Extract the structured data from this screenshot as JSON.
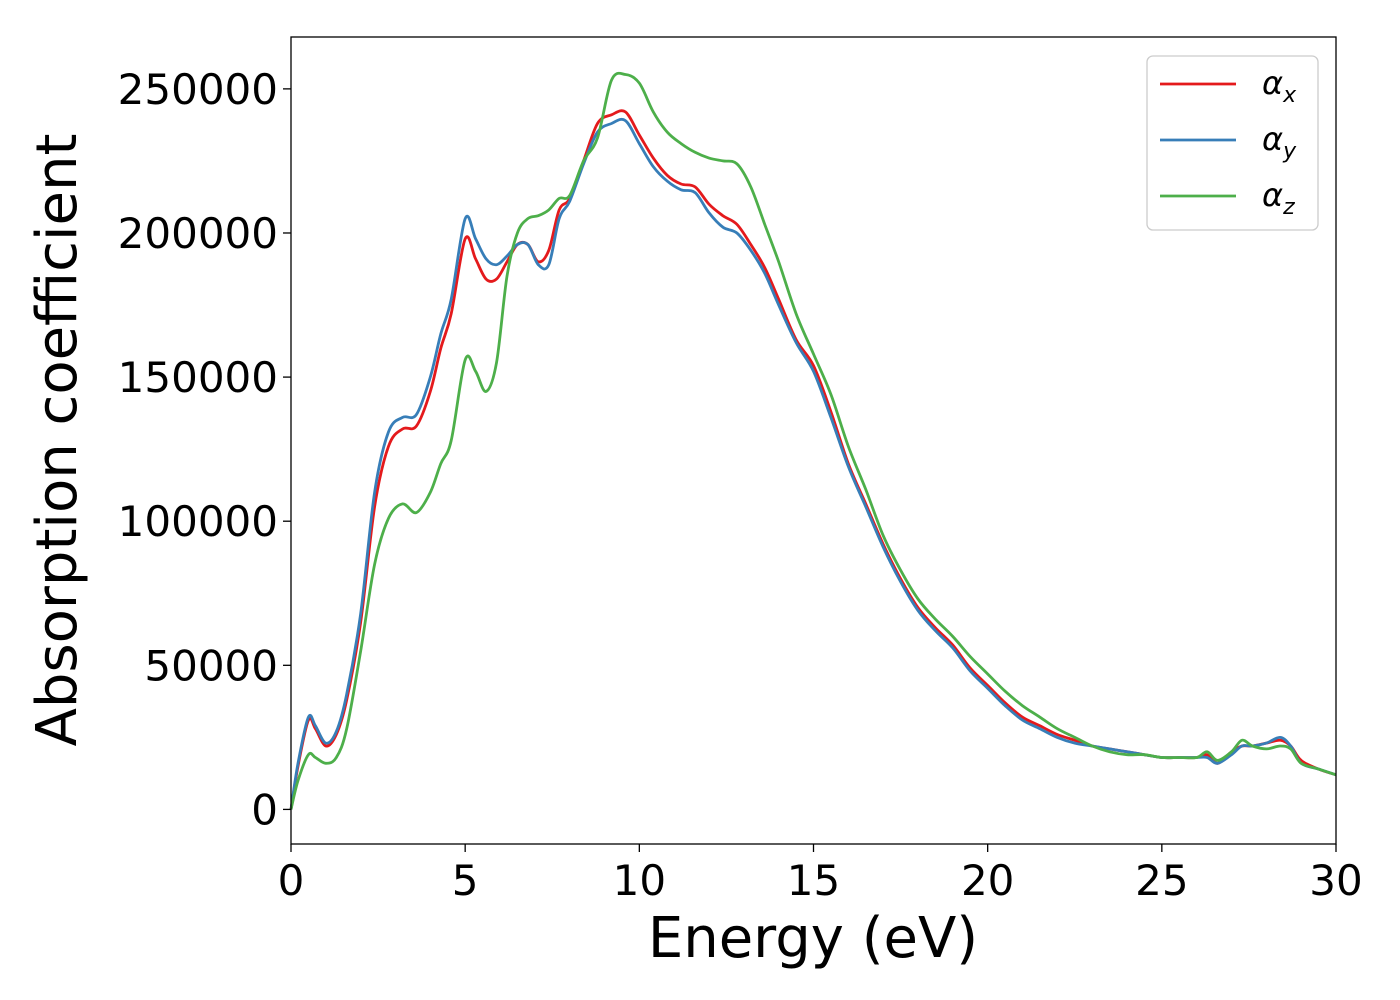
{
  "chart_data": {
    "type": "line",
    "title": "",
    "xlabel": "Energy (eV)",
    "ylabel": "Absorption coefficient",
    "xlim": [
      0,
      30
    ],
    "ylim": [
      -12000,
      268000
    ],
    "xticks": [
      0,
      5,
      10,
      15,
      20,
      25,
      30
    ],
    "yticks": [
      0,
      50000,
      100000,
      150000,
      200000,
      250000
    ],
    "grid": false,
    "legend_position": "top-right",
    "series": [
      {
        "name": "αx",
        "name_base": "α",
        "name_sub": "x",
        "color": "#e41a1c",
        "x": [
          0,
          0.2,
          0.5,
          0.7,
          1.0,
          1.3,
          1.6,
          2.0,
          2.4,
          2.8,
          3.2,
          3.6,
          4.0,
          4.3,
          4.6,
          5.0,
          5.3,
          5.6,
          5.9,
          6.2,
          6.5,
          6.8,
          7.1,
          7.4,
          7.7,
          8.0,
          8.4,
          8.8,
          9.2,
          9.6,
          10.0,
          10.4,
          10.8,
          11.2,
          11.6,
          12.0,
          12.4,
          12.8,
          13.2,
          13.6,
          14.0,
          14.5,
          15.0,
          15.5,
          16.0,
          16.5,
          17.0,
          17.5,
          18.0,
          18.5,
          19.0,
          19.5,
          20.0,
          20.5,
          21.0,
          21.5,
          22.0,
          22.5,
          23.0,
          23.5,
          24.0,
          24.5,
          25.0,
          25.5,
          26.0,
          26.3,
          26.6,
          27.0,
          27.3,
          27.6,
          28.0,
          28.4,
          28.7,
          29.0,
          29.5,
          30.0
        ],
        "values": [
          0,
          15000,
          31000,
          28000,
          22000,
          26000,
          38000,
          65000,
          105000,
          126000,
          132000,
          133000,
          145000,
          160000,
          172000,
          198000,
          191000,
          184000,
          184000,
          190000,
          196000,
          196000,
          190000,
          194000,
          208000,
          212000,
          225000,
          238000,
          241000,
          242000,
          234000,
          226000,
          220000,
          217000,
          216000,
          210000,
          206000,
          203000,
          196000,
          188000,
          177000,
          163000,
          154000,
          138000,
          120000,
          106000,
          92000,
          80000,
          70000,
          63000,
          57000,
          49000,
          43000,
          37000,
          32000,
          29000,
          26000,
          24000,
          22000,
          21000,
          20000,
          19000,
          18000,
          18000,
          18000,
          19000,
          16000,
          20000,
          22000,
          22000,
          23000,
          24000,
          22000,
          17000,
          14000,
          12000
        ]
      },
      {
        "name": "αy",
        "name_base": "α",
        "name_sub": "y",
        "color": "#377eb8",
        "x": [
          0,
          0.2,
          0.5,
          0.7,
          1.0,
          1.3,
          1.6,
          2.0,
          2.4,
          2.8,
          3.2,
          3.6,
          4.0,
          4.3,
          4.6,
          5.0,
          5.3,
          5.6,
          5.9,
          6.2,
          6.5,
          6.8,
          7.1,
          7.4,
          7.7,
          8.0,
          8.4,
          8.8,
          9.2,
          9.6,
          10.0,
          10.4,
          10.8,
          11.2,
          11.6,
          12.0,
          12.4,
          12.8,
          13.2,
          13.6,
          14.0,
          14.5,
          15.0,
          15.5,
          16.0,
          16.5,
          17.0,
          17.5,
          18.0,
          18.5,
          19.0,
          19.5,
          20.0,
          20.5,
          21.0,
          21.5,
          22.0,
          22.5,
          23.0,
          23.5,
          24.0,
          24.5,
          25.0,
          25.5,
          26.0,
          26.3,
          26.6,
          27.0,
          27.3,
          27.6,
          28.0,
          28.4,
          28.7,
          29.0,
          29.5,
          30.0
        ],
        "values": [
          0,
          16000,
          32000,
          29000,
          23000,
          27000,
          40000,
          68000,
          110000,
          131000,
          136000,
          137000,
          150000,
          165000,
          177000,
          205000,
          198000,
          191000,
          189000,
          192000,
          196000,
          196000,
          189000,
          189000,
          205000,
          211000,
          224000,
          235000,
          238000,
          239000,
          231000,
          223000,
          218000,
          215000,
          214000,
          207000,
          202000,
          200000,
          194000,
          186000,
          175000,
          162000,
          152000,
          136000,
          119000,
          105000,
          91000,
          79000,
          69000,
          62000,
          56000,
          48000,
          42000,
          36000,
          31000,
          28000,
          25000,
          23000,
          22000,
          21000,
          20000,
          19000,
          18000,
          18000,
          18000,
          18000,
          16000,
          19000,
          22000,
          22000,
          23000,
          25000,
          22000,
          16000,
          14000,
          12000
        ]
      },
      {
        "name": "αz",
        "name_base": "α",
        "name_sub": "z",
        "color": "#4daf4a",
        "x": [
          0,
          0.2,
          0.5,
          0.7,
          1.0,
          1.3,
          1.6,
          2.0,
          2.4,
          2.8,
          3.2,
          3.6,
          4.0,
          4.3,
          4.6,
          5.0,
          5.3,
          5.6,
          5.9,
          6.2,
          6.5,
          6.8,
          7.1,
          7.4,
          7.7,
          8.0,
          8.4,
          8.8,
          9.2,
          9.6,
          10.0,
          10.4,
          10.8,
          11.2,
          11.6,
          12.0,
          12.4,
          12.8,
          13.2,
          13.6,
          14.0,
          14.5,
          15.0,
          15.5,
          16.0,
          16.5,
          17.0,
          17.5,
          18.0,
          18.5,
          19.0,
          19.5,
          20.0,
          20.5,
          21.0,
          21.5,
          22.0,
          22.5,
          23.0,
          23.5,
          24.0,
          24.5,
          25.0,
          25.5,
          26.0,
          26.3,
          26.6,
          27.0,
          27.3,
          27.6,
          28.0,
          28.4,
          28.7,
          29.0,
          29.5,
          30.0
        ],
        "values": [
          0,
          10000,
          19000,
          18000,
          16000,
          18000,
          28000,
          55000,
          85000,
          101000,
          106000,
          103000,
          110000,
          120000,
          128000,
          156000,
          152000,
          145000,
          155000,
          185000,
          200000,
          205000,
          206000,
          208000,
          212000,
          213000,
          225000,
          233000,
          253000,
          255000,
          252000,
          242000,
          235000,
          231000,
          228000,
          226000,
          225000,
          224000,
          216000,
          203000,
          190000,
          172000,
          158000,
          144000,
          126000,
          111000,
          95000,
          83000,
          73000,
          66000,
          60000,
          53000,
          47000,
          41000,
          36000,
          32000,
          28000,
          25000,
          22000,
          20000,
          19000,
          19000,
          18000,
          18000,
          18000,
          20000,
          17000,
          20000,
          24000,
          22000,
          21000,
          22000,
          21000,
          16000,
          14000,
          12000
        ]
      }
    ]
  }
}
